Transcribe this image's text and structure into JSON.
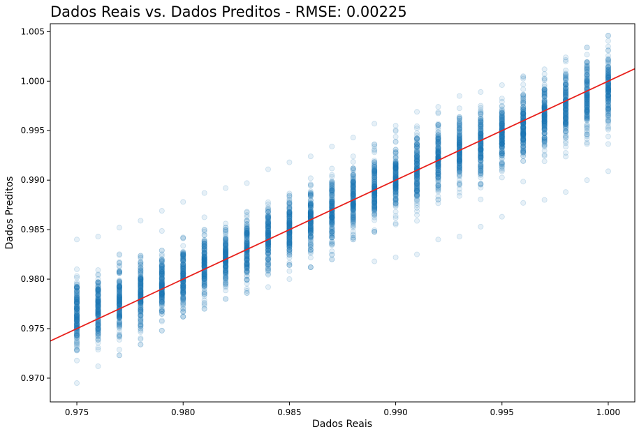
{
  "chart_data": {
    "type": "scatter",
    "title": "Dados Reais vs. Dados Preditos - RMSE: 0.00225",
    "xlabel": "Dados Reais",
    "ylabel": "Dados Preditos",
    "xlim": [
      0.97375,
      1.00125
    ],
    "ylim": [
      0.9676,
      1.0058
    ],
    "x_ticks": [
      0.975,
      0.98,
      0.985,
      0.99,
      0.995,
      1.0
    ],
    "x_tick_labels": [
      "0.975",
      "0.980",
      "0.985",
      "0.990",
      "0.995",
      "1.000"
    ],
    "y_ticks": [
      0.97,
      0.975,
      0.98,
      0.985,
      0.99,
      0.995,
      1.0,
      1.005
    ],
    "y_tick_labels": [
      "0.970",
      "0.975",
      "0.980",
      "0.985",
      "0.990",
      "0.995",
      "1.000",
      "1.005"
    ],
    "grid": false,
    "colors": {
      "points": "#1f77b4",
      "reference_line": "#e8211c"
    },
    "reference_line": {
      "x": [
        0.97375,
        1.00125
      ],
      "y": [
        0.97375,
        1.00125
      ]
    },
    "point_groups": [
      {
        "x": 0.975,
        "center": 0.9765,
        "spread": 0.0018,
        "range": [
          0.9695,
          0.984
        ]
      },
      {
        "x": 0.976,
        "center": 0.977,
        "spread": 0.0018,
        "range": [
          0.9712,
          0.9843
        ]
      },
      {
        "x": 0.977,
        "center": 0.9778,
        "spread": 0.0017,
        "range": [
          0.9723,
          0.9852
        ]
      },
      {
        "x": 0.978,
        "center": 0.9784,
        "spread": 0.0017,
        "range": [
          0.9734,
          0.9859
        ]
      },
      {
        "x": 0.979,
        "center": 0.9793,
        "spread": 0.0017,
        "range": [
          0.9748,
          0.9869
        ]
      },
      {
        "x": 0.98,
        "center": 0.9803,
        "spread": 0.0016,
        "range": [
          0.9762,
          0.9878
        ]
      },
      {
        "x": 0.981,
        "center": 0.9812,
        "spread": 0.0016,
        "range": [
          0.977,
          0.9887
        ]
      },
      {
        "x": 0.982,
        "center": 0.9822,
        "spread": 0.0016,
        "range": [
          0.978,
          0.9892
        ]
      },
      {
        "x": 0.983,
        "center": 0.983,
        "spread": 0.0016,
        "range": [
          0.9786,
          0.9897
        ]
      },
      {
        "x": 0.984,
        "center": 0.984,
        "spread": 0.0016,
        "range": [
          0.9792,
          0.9911
        ]
      },
      {
        "x": 0.985,
        "center": 0.985,
        "spread": 0.0016,
        "range": [
          0.98,
          0.9918
        ]
      },
      {
        "x": 0.986,
        "center": 0.986,
        "spread": 0.0016,
        "range": [
          0.9812,
          0.9924
        ]
      },
      {
        "x": 0.987,
        "center": 0.987,
        "spread": 0.0016,
        "range": [
          0.982,
          0.9934
        ]
      },
      {
        "x": 0.988,
        "center": 0.988,
        "spread": 0.0016,
        "range": [
          0.984,
          0.9943
        ]
      },
      {
        "x": 0.989,
        "center": 0.989,
        "spread": 0.0017,
        "range": [
          0.9818,
          0.9957
        ]
      },
      {
        "x": 0.99,
        "center": 0.99,
        "spread": 0.0017,
        "range": [
          0.9822,
          0.9955
        ]
      },
      {
        "x": 0.991,
        "center": 0.991,
        "spread": 0.0017,
        "range": [
          0.9825,
          0.9969
        ]
      },
      {
        "x": 0.992,
        "center": 0.992,
        "spread": 0.0017,
        "range": [
          0.984,
          0.9974
        ]
      },
      {
        "x": 0.993,
        "center": 0.9928,
        "spread": 0.0017,
        "range": [
          0.9843,
          0.9985
        ]
      },
      {
        "x": 0.994,
        "center": 0.9937,
        "spread": 0.0017,
        "range": [
          0.9853,
          0.9989
        ]
      },
      {
        "x": 0.995,
        "center": 0.9946,
        "spread": 0.0017,
        "range": [
          0.9863,
          0.9996
        ]
      },
      {
        "x": 0.996,
        "center": 0.9956,
        "spread": 0.0017,
        "range": [
          0.9877,
          1.0005
        ]
      },
      {
        "x": 0.997,
        "center": 0.9965,
        "spread": 0.0017,
        "range": [
          0.988,
          1.0012
        ]
      },
      {
        "x": 0.998,
        "center": 0.9975,
        "spread": 0.0017,
        "range": [
          0.9888,
          1.0024
        ]
      },
      {
        "x": 0.999,
        "center": 0.9982,
        "spread": 0.0018,
        "range": [
          0.99,
          1.0034
        ]
      },
      {
        "x": 1.0,
        "center": 0.999,
        "spread": 0.0018,
        "range": [
          0.9909,
          1.0046
        ]
      }
    ]
  }
}
